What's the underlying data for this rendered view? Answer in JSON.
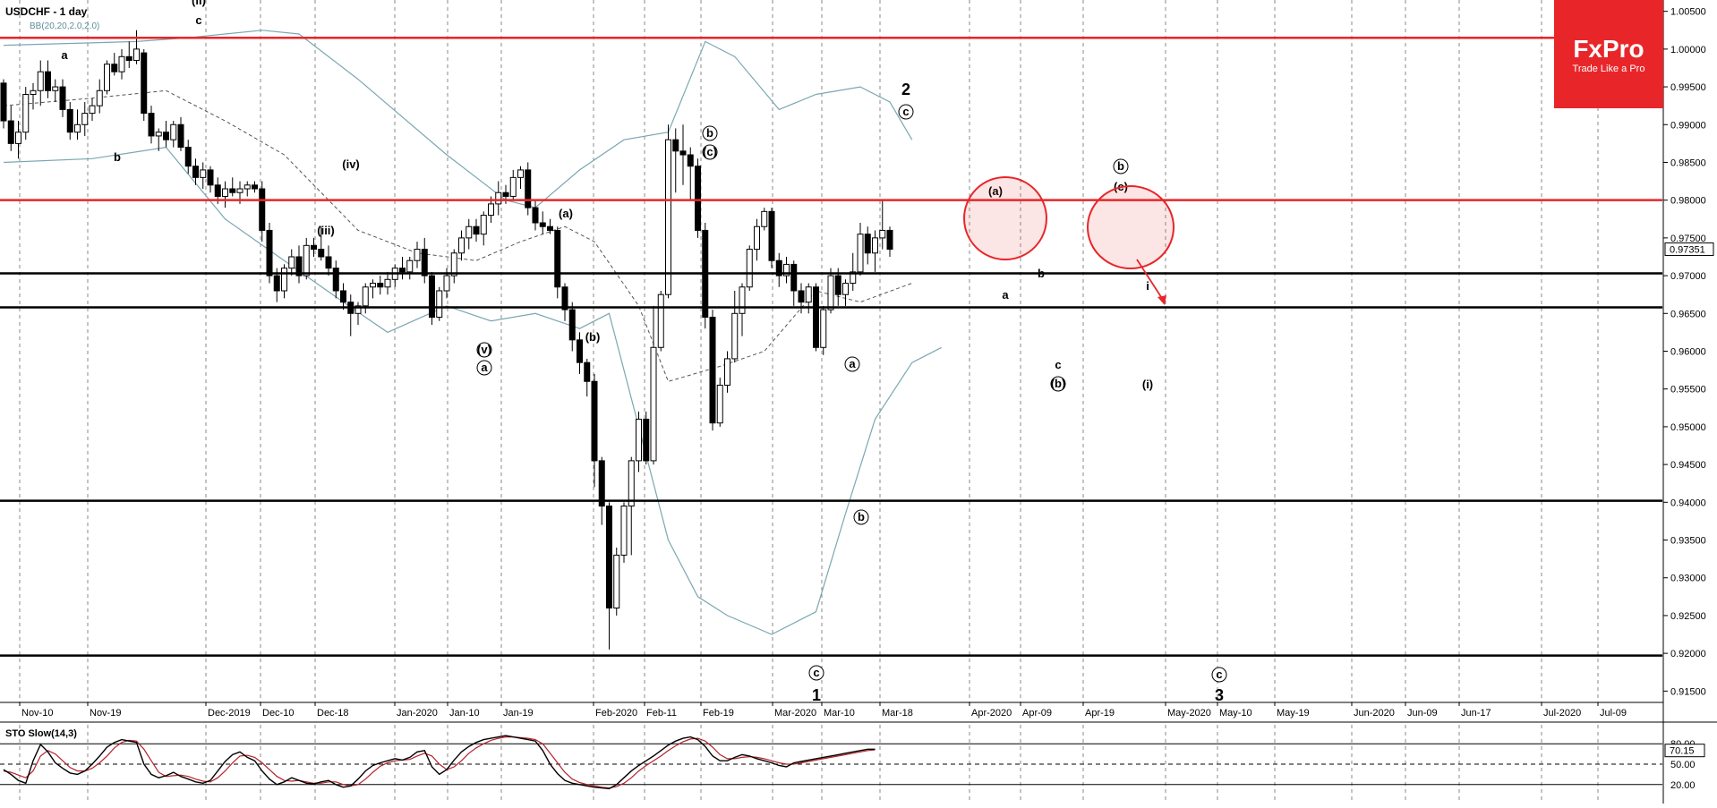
{
  "window": {
    "symbol_label": "USDCHF - 1 day",
    "bb_label": "BB(20,20,2.0,2.0)",
    "sto_label": "STO Slow(14,3)"
  },
  "logo": {
    "brand": "FxPro",
    "tagline": "Trade Like a Pro",
    "bg_color": "#e8262a"
  },
  "colors": {
    "bull_body": "#ffffff",
    "bear_body": "#000000",
    "bollinger": "#7aa7b2",
    "hline_red": "#e8262a",
    "hline_black": "#000000",
    "sto_main": "#000000",
    "sto_signal": "#b5222b"
  },
  "price_axis": {
    "ticks": [
      "1.00500",
      "1.00000",
      "0.99500",
      "0.99000",
      "0.98500",
      "0.98000",
      "0.97500",
      "0.97000",
      "0.96500",
      "0.96000",
      "0.95500",
      "0.95000",
      "0.94500",
      "0.94000",
      "0.93500",
      "0.93000",
      "0.92500",
      "0.92000",
      "0.91500"
    ],
    "current_price": "0.97351"
  },
  "date_axis": {
    "labels": [
      "Nov-10",
      "Nov-19",
      "Dec-2019",
      "Dec-10",
      "Dec-18",
      "Jan-2020",
      "Jan-10",
      "Jan-19",
      "Feb-2020",
      "Feb-11",
      "Feb-19",
      "Mar-2020",
      "Mar-10",
      "Mar-18",
      "Apr-2020",
      "Apr-09",
      "Apr-19",
      "May-2020",
      "May-10",
      "May-19",
      "Jun-2020",
      "Jun-09",
      "Jun-17",
      "Jul-2020",
      "Jul-09"
    ]
  },
  "sto_axis": {
    "ticks": [
      "80.00",
      "50.00",
      "20.00"
    ],
    "current_value": "70.15"
  },
  "annotations": {
    "wave_labels": [
      "(ii)",
      "c",
      "a",
      "b",
      "(iv)",
      "(iii)",
      "(v)",
      "a",
      "(a)",
      "(b)",
      "b",
      "(c)",
      "2",
      "c",
      "a",
      "b",
      "c",
      "1",
      "(a)",
      "a",
      "b",
      "c",
      "(b)",
      "b",
      "(c)",
      "i",
      "(i)",
      "c",
      "3"
    ]
  },
  "chart_data": {
    "type": "candlestick",
    "symbol": "USDCHF",
    "timeframe": "1 day",
    "ylim": [
      0.9135,
      1.0065
    ],
    "horizontal_lines": [
      {
        "price": 1.0015,
        "color": "red"
      },
      {
        "price": 0.98,
        "color": "red"
      },
      {
        "price": 0.9703,
        "color": "black"
      },
      {
        "price": 0.9658,
        "color": "black"
      },
      {
        "price": 0.9402,
        "color": "black"
      },
      {
        "price": 0.9197,
        "color": "black"
      }
    ],
    "candles": [
      [
        0.9955,
        0.996,
        0.9895,
        0.9905
      ],
      [
        0.9905,
        0.9925,
        0.9865,
        0.9875
      ],
      [
        0.9875,
        0.9905,
        0.9855,
        0.989
      ],
      [
        0.989,
        0.995,
        0.988,
        0.994
      ],
      [
        0.994,
        0.9955,
        0.992,
        0.9945
      ],
      [
        0.9945,
        0.9985,
        0.9925,
        0.997
      ],
      [
        0.997,
        0.9985,
        0.9935,
        0.9945
      ],
      [
        0.9945,
        0.996,
        0.993,
        0.995
      ],
      [
        0.995,
        0.996,
        0.991,
        0.992
      ],
      [
        0.992,
        0.993,
        0.988,
        0.989
      ],
      [
        0.989,
        0.992,
        0.988,
        0.99
      ],
      [
        0.99,
        0.993,
        0.9885,
        0.9915
      ],
      [
        0.9915,
        0.9935,
        0.9905,
        0.9925
      ],
      [
        0.9925,
        0.996,
        0.9915,
        0.9945
      ],
      [
        0.9945,
        0.9985,
        0.994,
        0.998
      ],
      [
        0.998,
        0.9995,
        0.9965,
        0.997
      ],
      [
        0.997,
        1.0,
        0.996,
        0.999
      ],
      [
        0.999,
        1.001,
        0.9975,
        0.9985
      ],
      [
        0.9985,
        1.0025,
        0.998,
        1.0
      ],
      [
        0.9995,
        1.0,
        0.9905,
        0.9915
      ],
      [
        0.9915,
        0.9925,
        0.9875,
        0.9885
      ],
      [
        0.9885,
        0.9895,
        0.9865,
        0.989
      ],
      [
        0.989,
        0.9905,
        0.987,
        0.988
      ],
      [
        0.988,
        0.9905,
        0.987,
        0.99
      ],
      [
        0.99,
        0.991,
        0.9865,
        0.987
      ],
      [
        0.987,
        0.988,
        0.9835,
        0.9845
      ],
      [
        0.9845,
        0.9855,
        0.982,
        0.983
      ],
      [
        0.983,
        0.985,
        0.9815,
        0.984
      ],
      [
        0.984,
        0.9845,
        0.981,
        0.982
      ],
      [
        0.982,
        0.983,
        0.9795,
        0.9805
      ],
      [
        0.9805,
        0.9825,
        0.979,
        0.9815
      ],
      [
        0.9815,
        0.983,
        0.9805,
        0.981
      ],
      [
        0.981,
        0.9825,
        0.9795,
        0.9815
      ],
      [
        0.9815,
        0.9825,
        0.9805,
        0.982
      ],
      [
        0.982,
        0.9825,
        0.981,
        0.9815
      ],
      [
        0.9815,
        0.9825,
        0.9745,
        0.976
      ],
      [
        0.976,
        0.977,
        0.969,
        0.97
      ],
      [
        0.97,
        0.971,
        0.9665,
        0.968
      ],
      [
        0.968,
        0.9715,
        0.967,
        0.971
      ],
      [
        0.971,
        0.9735,
        0.97,
        0.9725
      ],
      [
        0.9725,
        0.974,
        0.969,
        0.97
      ],
      [
        0.97,
        0.975,
        0.9695,
        0.974
      ],
      [
        0.974,
        0.975,
        0.9725,
        0.9735
      ],
      [
        0.9735,
        0.9765,
        0.972,
        0.9725
      ],
      [
        0.9725,
        0.974,
        0.97,
        0.971
      ],
      [
        0.971,
        0.972,
        0.967,
        0.968
      ],
      [
        0.968,
        0.969,
        0.9655,
        0.9665
      ],
      [
        0.9665,
        0.9675,
        0.962,
        0.965
      ],
      [
        0.965,
        0.9665,
        0.9635,
        0.966
      ],
      [
        0.966,
        0.969,
        0.965,
        0.9685
      ],
      [
        0.9685,
        0.9695,
        0.967,
        0.969
      ],
      [
        0.969,
        0.97,
        0.9675,
        0.9685
      ],
      [
        0.9685,
        0.9705,
        0.9675,
        0.9695
      ],
      [
        0.9695,
        0.9715,
        0.9685,
        0.971
      ],
      [
        0.971,
        0.9725,
        0.9695,
        0.9705
      ],
      [
        0.9705,
        0.9725,
        0.9695,
        0.972
      ],
      [
        0.972,
        0.9745,
        0.971,
        0.9735
      ],
      [
        0.9735,
        0.975,
        0.969,
        0.97
      ],
      [
        0.97,
        0.9705,
        0.9635,
        0.9645
      ],
      [
        0.9645,
        0.9685,
        0.964,
        0.968
      ],
      [
        0.968,
        0.971,
        0.967,
        0.97
      ],
      [
        0.97,
        0.9735,
        0.969,
        0.973
      ],
      [
        0.973,
        0.976,
        0.972,
        0.975
      ],
      [
        0.975,
        0.9775,
        0.9735,
        0.9765
      ],
      [
        0.9765,
        0.9775,
        0.9745,
        0.9755
      ],
      [
        0.9755,
        0.9785,
        0.974,
        0.978
      ],
      [
        0.978,
        0.9805,
        0.977,
        0.9795
      ],
      [
        0.9795,
        0.9825,
        0.978,
        0.981
      ],
      [
        0.981,
        0.982,
        0.9795,
        0.9805
      ],
      [
        0.9805,
        0.984,
        0.98,
        0.983
      ],
      [
        0.983,
        0.9845,
        0.9815,
        0.984
      ],
      [
        0.984,
        0.985,
        0.978,
        0.979
      ],
      [
        0.979,
        0.98,
        0.976,
        0.977
      ],
      [
        0.977,
        0.9785,
        0.9755,
        0.9765
      ],
      [
        0.9765,
        0.9775,
        0.9755,
        0.976
      ],
      [
        0.976,
        0.9765,
        0.967,
        0.9685
      ],
      [
        0.9685,
        0.969,
        0.964,
        0.9655
      ],
      [
        0.9655,
        0.9665,
        0.96,
        0.9615
      ],
      [
        0.9615,
        0.9625,
        0.957,
        0.9585
      ],
      [
        0.9585,
        0.959,
        0.954,
        0.956
      ],
      [
        0.956,
        0.957,
        0.942,
        0.9455
      ],
      [
        0.9455,
        0.946,
        0.937,
        0.9395
      ],
      [
        0.9395,
        0.94,
        0.9205,
        0.926
      ],
      [
        0.926,
        0.934,
        0.925,
        0.933
      ],
      [
        0.933,
        0.94,
        0.932,
        0.9395
      ],
      [
        0.9395,
        0.946,
        0.933,
        0.9455
      ],
      [
        0.9455,
        0.952,
        0.944,
        0.951
      ],
      [
        0.951,
        0.952,
        0.945,
        0.9455
      ],
      [
        0.9455,
        0.966,
        0.945,
        0.9605
      ],
      [
        0.9605,
        0.968,
        0.96,
        0.9675
      ],
      [
        0.9675,
        0.99,
        0.967,
        0.988
      ],
      [
        0.988,
        0.9895,
        0.981,
        0.9865
      ],
      [
        0.9865,
        0.99,
        0.982,
        0.986
      ],
      [
        0.986,
        0.987,
        0.98,
        0.9845
      ],
      [
        0.9845,
        0.9855,
        0.975,
        0.976
      ],
      [
        0.976,
        0.977,
        0.963,
        0.9645
      ],
      [
        0.9645,
        0.9655,
        0.9495,
        0.9505
      ],
      [
        0.9505,
        0.9565,
        0.95,
        0.9555
      ],
      [
        0.9555,
        0.96,
        0.9545,
        0.959
      ],
      [
        0.959,
        0.968,
        0.9585,
        0.965
      ],
      [
        0.965,
        0.969,
        0.962,
        0.9685
      ],
      [
        0.9685,
        0.974,
        0.968,
        0.9735
      ],
      [
        0.9735,
        0.9775,
        0.972,
        0.9765
      ],
      [
        0.9765,
        0.979,
        0.976,
        0.9785
      ],
      [
        0.9785,
        0.979,
        0.971,
        0.972
      ],
      [
        0.972,
        0.973,
        0.9685,
        0.97
      ],
      [
        0.97,
        0.9725,
        0.969,
        0.9715
      ],
      [
        0.9715,
        0.972,
        0.966,
        0.968
      ],
      [
        0.968,
        0.969,
        0.965,
        0.9665
      ],
      [
        0.9665,
        0.969,
        0.965,
        0.9685
      ],
      [
        0.9685,
        0.969,
        0.96,
        0.9605
      ],
      [
        0.9605,
        0.966,
        0.9595,
        0.9655
      ],
      [
        0.9655,
        0.971,
        0.965,
        0.97
      ],
      [
        0.97,
        0.971,
        0.966,
        0.9675
      ],
      [
        0.9675,
        0.9695,
        0.966,
        0.969
      ],
      [
        0.969,
        0.973,
        0.968,
        0.9705
      ],
      [
        0.9705,
        0.977,
        0.97,
        0.9755
      ],
      [
        0.9755,
        0.9765,
        0.9715,
        0.973
      ],
      [
        0.973,
        0.976,
        0.9705,
        0.975
      ],
      [
        0.975,
        0.98,
        0.9735,
        0.976
      ],
      [
        0.976,
        0.9765,
        0.9725,
        0.9735
      ]
    ],
    "bollinger": {
      "upper": [
        [
          0,
          1.0005
        ],
        [
          18,
          1.001
        ],
        [
          25,
          1.0015
        ],
        [
          35,
          1.0025
        ],
        [
          40,
          1.002
        ],
        [
          48,
          0.996
        ],
        [
          60,
          0.986
        ],
        [
          68,
          0.98
        ],
        [
          72,
          0.979
        ],
        [
          78,
          0.984
        ],
        [
          84,
          0.988
        ],
        [
          90,
          0.989
        ],
        [
          95,
          1.001
        ],
        [
          99,
          0.999
        ],
        [
          105,
          0.992
        ],
        [
          110,
          0.994
        ],
        [
          116,
          0.995
        ],
        [
          120,
          0.993
        ],
        [
          123,
          0.988
        ]
      ],
      "middle": [
        [
          0,
          0.9925
        ],
        [
          12,
          0.9935
        ],
        [
          22,
          0.9945
        ],
        [
          30,
          0.9905
        ],
        [
          38,
          0.986
        ],
        [
          48,
          0.976
        ],
        [
          56,
          0.973
        ],
        [
          64,
          0.972
        ],
        [
          70,
          0.9745
        ],
        [
          76,
          0.9765
        ],
        [
          80,
          0.9745
        ],
        [
          86,
          0.966
        ],
        [
          90,
          0.956
        ],
        [
          97,
          0.958
        ],
        [
          103,
          0.96
        ],
        [
          110,
          0.968
        ],
        [
          116,
          0.9665
        ],
        [
          123,
          0.969
        ]
      ],
      "lower": [
        [
          0,
          0.985
        ],
        [
          12,
          0.9855
        ],
        [
          22,
          0.987
        ],
        [
          30,
          0.9775
        ],
        [
          38,
          0.972
        ],
        [
          46,
          0.9665
        ],
        [
          52,
          0.9625
        ],
        [
          60,
          0.966
        ],
        [
          66,
          0.964
        ],
        [
          72,
          0.965
        ],
        [
          78,
          0.963
        ],
        [
          82,
          0.965
        ],
        [
          86,
          0.95
        ],
        [
          90,
          0.935
        ],
        [
          94,
          0.9275
        ],
        [
          98,
          0.925
        ],
        [
          104,
          0.9225
        ],
        [
          110,
          0.9255
        ],
        [
          114,
          0.9385
        ],
        [
          118,
          0.951
        ],
        [
          123,
          0.9585
        ],
        [
          127,
          0.9605
        ]
      ]
    },
    "stochastic": {
      "main": [
        42,
        35,
        26,
        22,
        55,
        79,
        68,
        52,
        44,
        37,
        35,
        40,
        50,
        62,
        75,
        82,
        86,
        84,
        82,
        50,
        35,
        30,
        33,
        38,
        32,
        28,
        24,
        22,
        26,
        40,
        54,
        64,
        68,
        60,
        55,
        40,
        28,
        20,
        24,
        30,
        26,
        22,
        21,
        24,
        26,
        20,
        16,
        18,
        28,
        40,
        48,
        52,
        55,
        58,
        56,
        60,
        68,
        70,
        46,
        35,
        42,
        56,
        68,
        76,
        82,
        86,
        88,
        90,
        92,
        90,
        88,
        86,
        84,
        70,
        50,
        36,
        26,
        22,
        20,
        18,
        16,
        15,
        14,
        20,
        30,
        40,
        48,
        55,
        62,
        70,
        78,
        84,
        88,
        90,
        86,
        76,
        62,
        55,
        55,
        60,
        64,
        62,
        58,
        55,
        52,
        48,
        46,
        52,
        54,
        56,
        58,
        60,
        62,
        64,
        66,
        68,
        70,
        72,
        72
      ],
      "signal": [
        40,
        38,
        34,
        30,
        40,
        62,
        70,
        65,
        55,
        45,
        40,
        40,
        44,
        52,
        62,
        74,
        82,
        85,
        84,
        72,
        55,
        38,
        32,
        33,
        34,
        32,
        28,
        25,
        24,
        30,
        40,
        52,
        62,
        63,
        60,
        52,
        42,
        32,
        26,
        25,
        26,
        24,
        22,
        22,
        24,
        24,
        20,
        18,
        20,
        28,
        38,
        47,
        52,
        55,
        56,
        57,
        62,
        66,
        62,
        50,
        42,
        46,
        55,
        66,
        74,
        80,
        85,
        88,
        90,
        90,
        89,
        88,
        86,
        80,
        66,
        52,
        38,
        28,
        23,
        20,
        18,
        16,
        15,
        17,
        22,
        30,
        40,
        48,
        55,
        62,
        70,
        77,
        83,
        87,
        88,
        84,
        75,
        64,
        58,
        58,
        60,
        61,
        60,
        58,
        55,
        52,
        50,
        50,
        52,
        54,
        56,
        58,
        60,
        62,
        64,
        66,
        68,
        70,
        71
      ]
    }
  }
}
